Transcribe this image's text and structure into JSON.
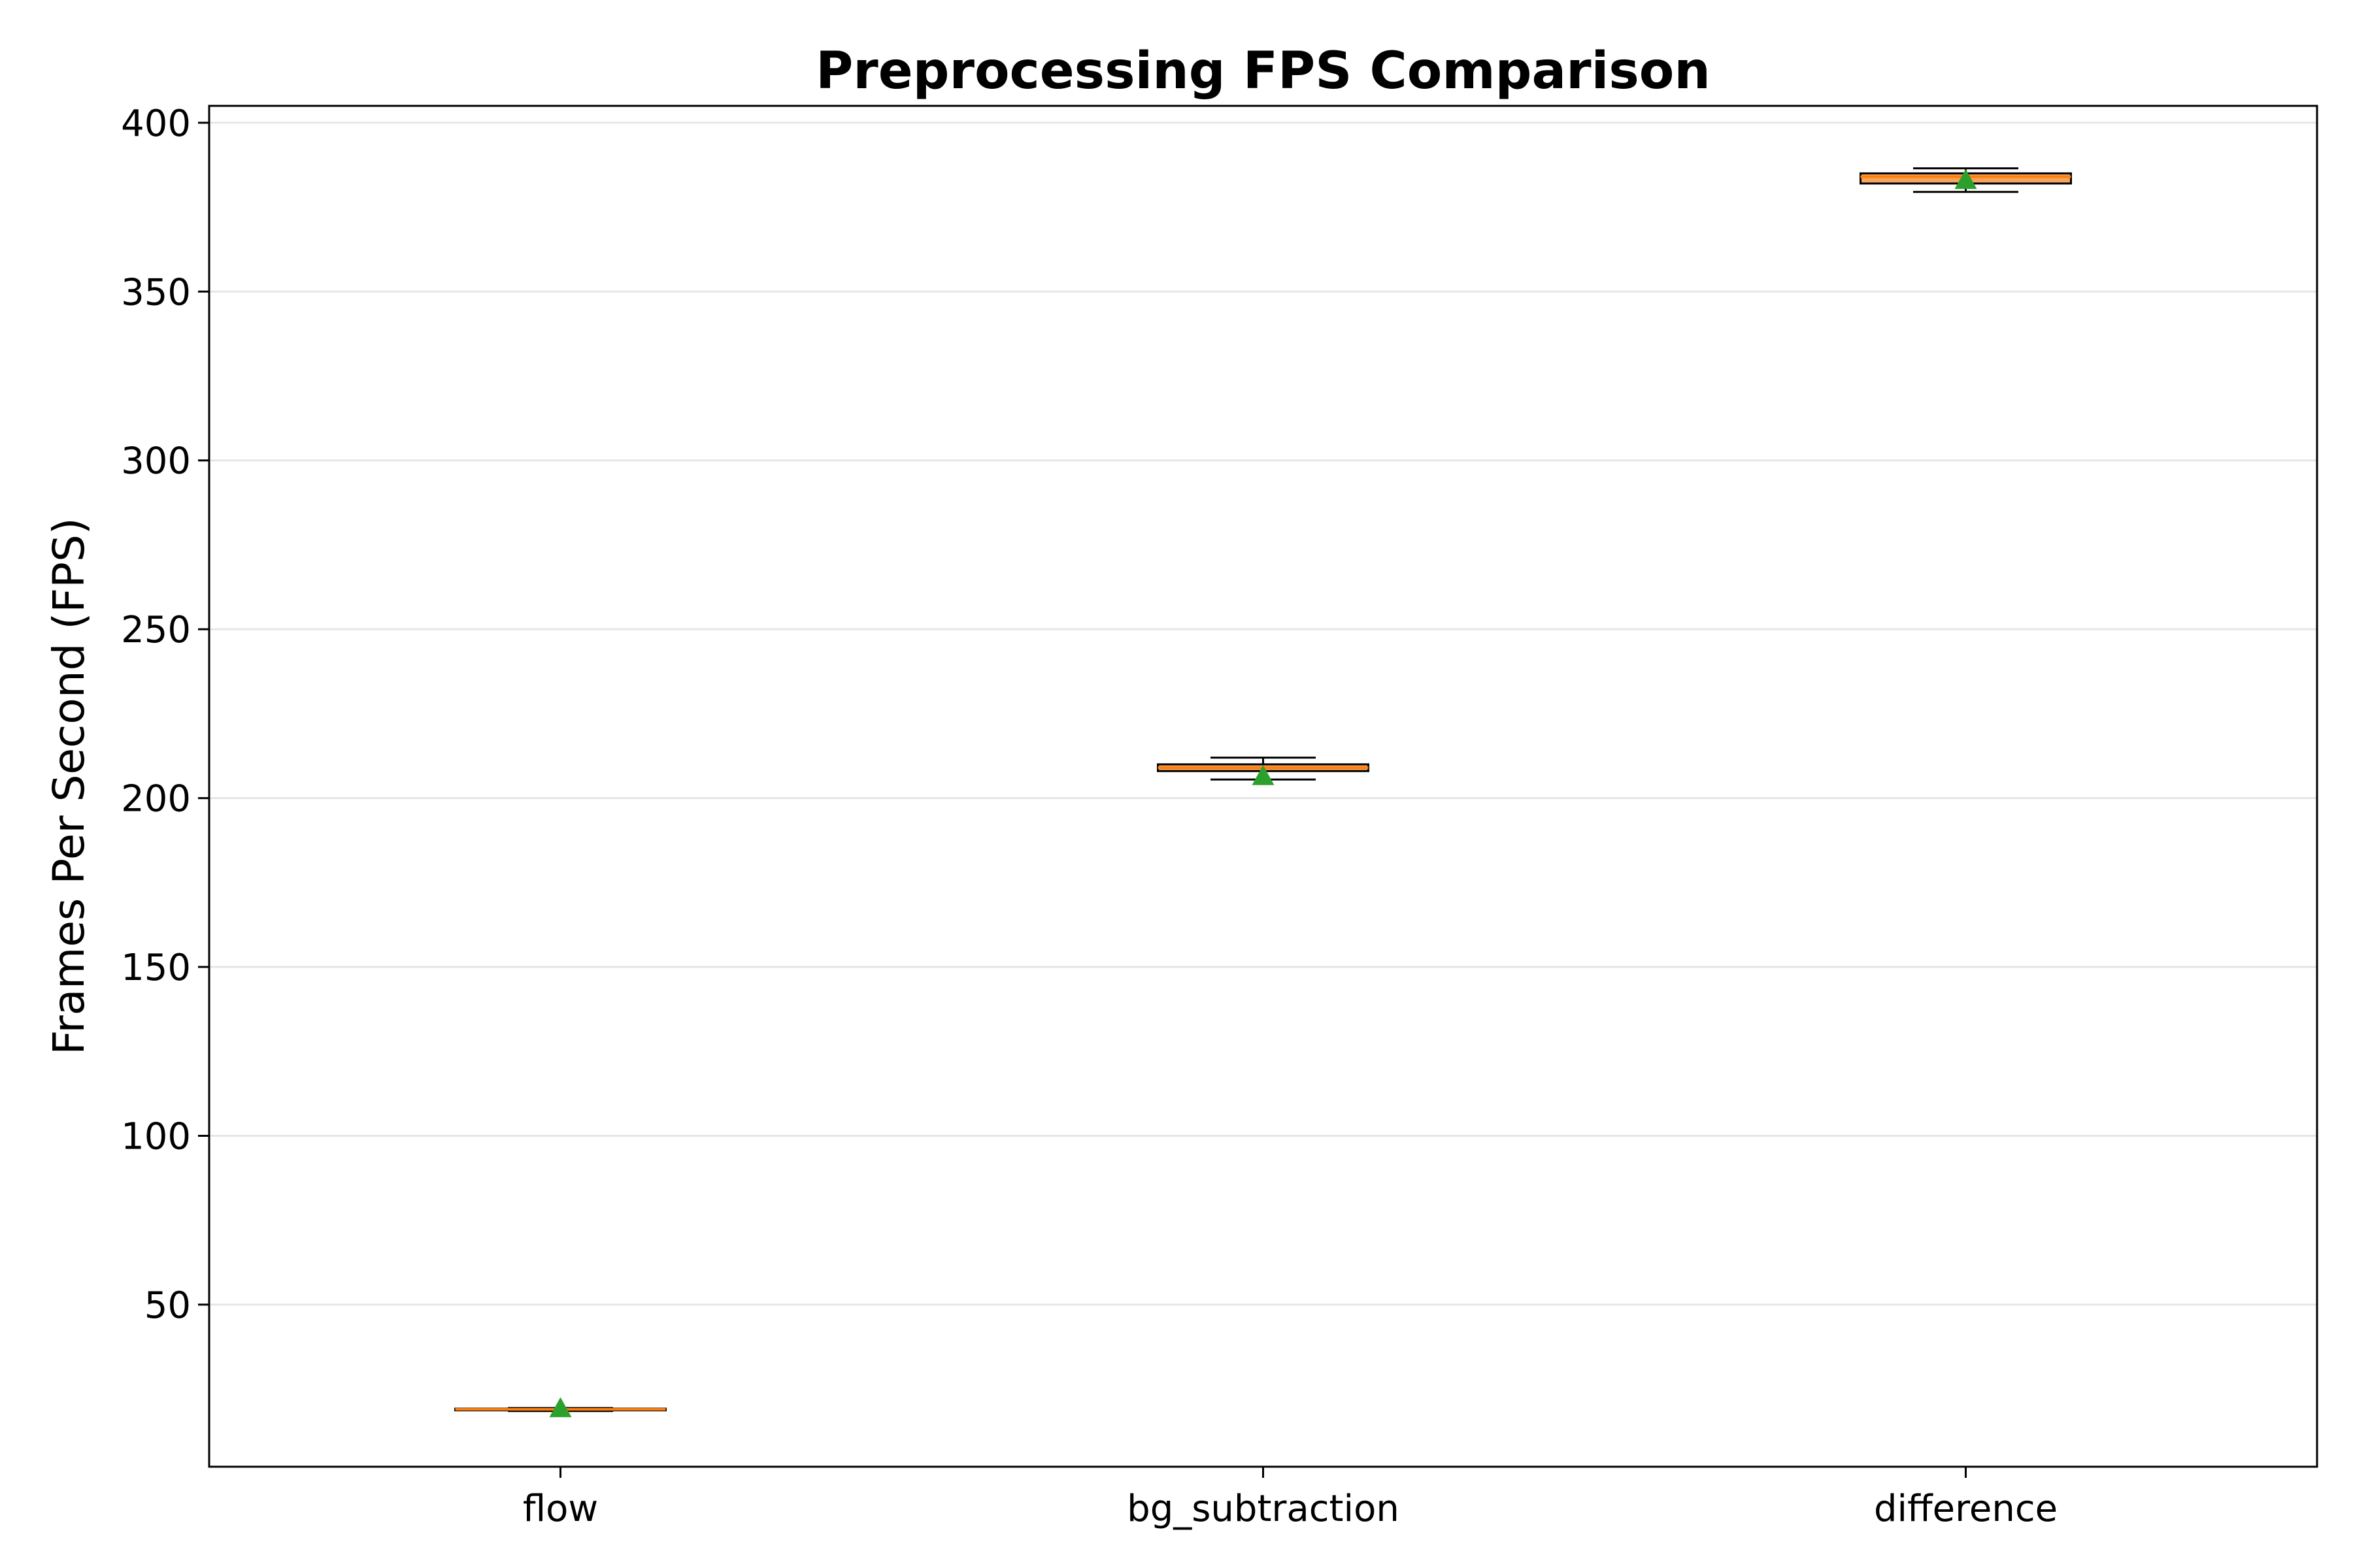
{
  "chart_data": {
    "type": "box",
    "title": "Preprocessing FPS Comparison",
    "xlabel": "",
    "ylabel": "Frames Per Second (FPS)",
    "categories": [
      "flow",
      "bg_subtraction",
      "difference"
    ],
    "ylim": [
      2,
      405
    ],
    "yticks": [
      50,
      100,
      150,
      200,
      250,
      300,
      350,
      400
    ],
    "grid": "horizontal",
    "boxes": [
      {
        "category": "flow",
        "whisker_low": 18.5,
        "q1": 18.7,
        "median": 19.0,
        "q3": 19.2,
        "whisker_high": 19.4,
        "mean": 19.3
      },
      {
        "category": "bg_subtraction",
        "whisker_low": 205.5,
        "q1": 208.0,
        "median": 209.0,
        "q3": 210.0,
        "whisker_high": 212.0,
        "mean": 206.5
      },
      {
        "category": "difference",
        "whisker_low": 379.5,
        "q1": 382.0,
        "median": 384.0,
        "q3": 385.0,
        "whisker_high": 386.5,
        "mean": 383.0
      }
    ],
    "colors": {
      "box_fill": "#f5a45c",
      "median": "#ff7f0e",
      "mean_marker": "#2ca02c",
      "grid": "#e6e6e6",
      "axis": "#000000"
    }
  }
}
